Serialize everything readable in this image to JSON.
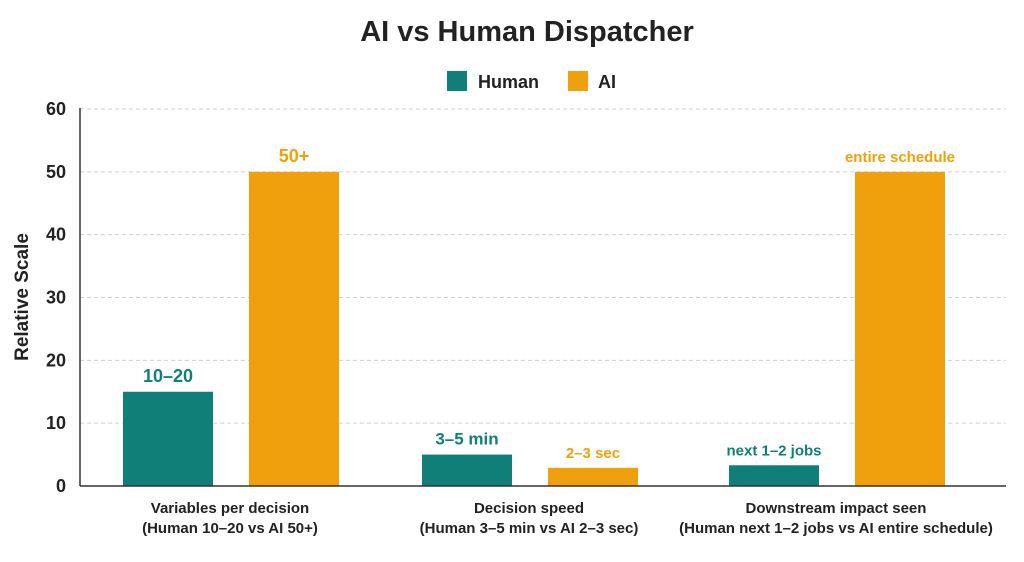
{
  "colors": {
    "human": "#0f7f78",
    "ai": "#f0a00c",
    "axis": "#333333",
    "grid": "#cfcfcf",
    "text": "#222222"
  },
  "chart_data": {
    "type": "bar",
    "title": "AI vs Human Dispatcher",
    "ylabel": "Relative Scale",
    "xlabel": "",
    "ylim": [
      0,
      60
    ],
    "yticks": [
      "0",
      "10",
      "20",
      "30",
      "40",
      "50",
      "60"
    ],
    "grid": true,
    "legend": "top-center",
    "categories": [
      [
        "Variables per decision",
        "(Human 10–20 vs AI 50+)"
      ],
      [
        "Decision speed",
        "(Human 3–5 min vs AI 2–3 sec)"
      ],
      [
        "Downstream impact seen",
        "(Human next 1–2 jobs vs AI entire schedule)"
      ]
    ],
    "series": [
      {
        "name": "Human",
        "color": "#0f7f78",
        "values": [
          15,
          5,
          3.3
        ],
        "labels": [
          "10–20",
          "3–5 min",
          "next 1–2 jobs"
        ]
      },
      {
        "name": "AI",
        "color": "#f0a00c",
        "values": [
          50,
          2.9,
          50
        ],
        "labels": [
          "50+",
          "2–3 sec",
          "entire schedule"
        ]
      }
    ]
  }
}
